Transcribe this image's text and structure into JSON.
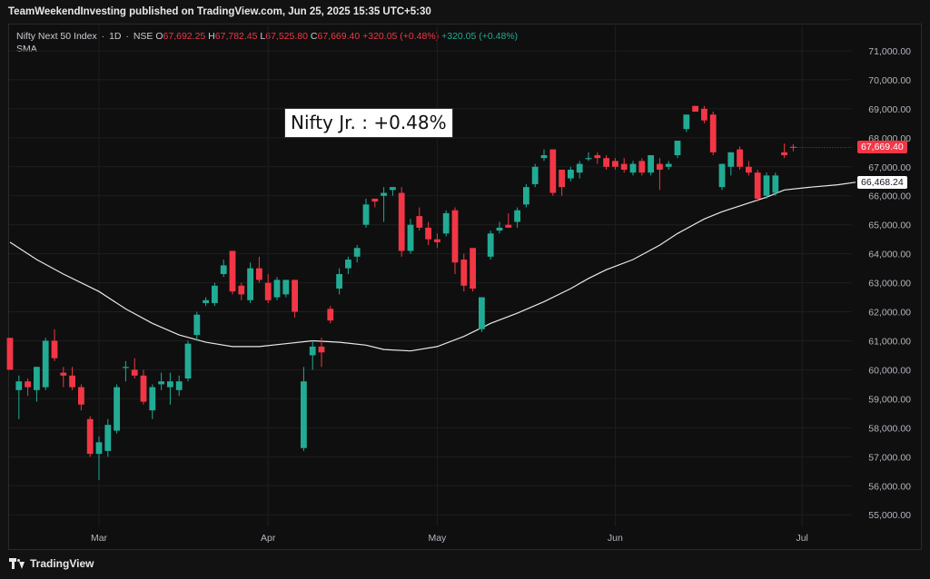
{
  "header": {
    "publisher_line": "TeamWeekendInvesting published on TradingView.com, Jun 25, 2025 15:35 UTC+5:30"
  },
  "legend": {
    "symbol": "Nifty Next 50 Index",
    "interval": "1D",
    "exchange": "NSE",
    "open_label": "O",
    "open": "67,692.25",
    "high_label": "H",
    "high": "67,782.45",
    "low_label": "L",
    "low": "67,525.80",
    "close_label": "C",
    "close": "67,669.40",
    "change": "+320.05 (+0.48%)",
    "change2": "+320.05 (+0.48%)",
    "indicator": "SMA"
  },
  "annotation": "Nifty Jr. : +0.48%",
  "price_tags": {
    "last": "67,669.40",
    "sma": "66,468.24"
  },
  "footer": {
    "brand": "TradingView"
  },
  "colors": {
    "up": "#22ab94",
    "down": "#f23645",
    "sma": "#e8e8e8",
    "grid": "#1e1e1e"
  },
  "chart_data": {
    "type": "candlestick",
    "title": "",
    "y_axis": {
      "ticks": [
        "55,000.00",
        "56,000.00",
        "57,000.00",
        "58,000.00",
        "59,000.00",
        "60,000.00",
        "61,000.00",
        "62,000.00",
        "63,000.00",
        "64,000.00",
        "65,000.00",
        "66,000.00",
        "67,000.00",
        "68,000.00",
        "69,000.00",
        "70,000.00",
        "71,000.00"
      ],
      "min": 54600,
      "max": 71500
    },
    "x_axis": {
      "ticks": [
        {
          "label": "Mar",
          "index": 10
        },
        {
          "label": "Apr",
          "index": 29
        },
        {
          "label": "May",
          "index": 48
        },
        {
          "label": "Jun",
          "index": 68
        },
        {
          "label": "Jul",
          "index": 89
        }
      ],
      "n_slots": 90
    },
    "candles": [
      {
        "i": 0,
        "o": 61100,
        "h": 61100,
        "l": 60000,
        "c": 60000
      },
      {
        "i": 1,
        "o": 59300,
        "h": 59800,
        "l": 58300,
        "c": 59600
      },
      {
        "i": 2,
        "o": 59600,
        "h": 59700,
        "l": 59100,
        "c": 59400
      },
      {
        "i": 3,
        "o": 59300,
        "h": 60100,
        "l": 58900,
        "c": 60100
      },
      {
        "i": 4,
        "o": 59400,
        "h": 61100,
        "l": 59300,
        "c": 61000
      },
      {
        "i": 5,
        "o": 61000,
        "h": 61400,
        "l": 60300,
        "c": 60400
      },
      {
        "i": 6,
        "o": 59900,
        "h": 60100,
        "l": 59400,
        "c": 59800
      },
      {
        "i": 7,
        "o": 59800,
        "h": 60100,
        "l": 59300,
        "c": 59400
      },
      {
        "i": 8,
        "o": 59400,
        "h": 59500,
        "l": 58600,
        "c": 58800
      },
      {
        "i": 9,
        "o": 58300,
        "h": 58400,
        "l": 57000,
        "c": 57100
      },
      {
        "i": 10,
        "o": 57100,
        "h": 57700,
        "l": 56200,
        "c": 57500
      },
      {
        "i": 11,
        "o": 57200,
        "h": 58300,
        "l": 57000,
        "c": 58100
      },
      {
        "i": 12,
        "o": 57900,
        "h": 59500,
        "l": 57800,
        "c": 59400
      },
      {
        "i": 13,
        "o": 60100,
        "h": 60300,
        "l": 59600,
        "c": 60100
      },
      {
        "i": 14,
        "o": 60000,
        "h": 60400,
        "l": 59700,
        "c": 59800
      },
      {
        "i": 15,
        "o": 59800,
        "h": 60000,
        "l": 58800,
        "c": 58900
      },
      {
        "i": 16,
        "o": 58600,
        "h": 59500,
        "l": 58300,
        "c": 59400
      },
      {
        "i": 17,
        "o": 59500,
        "h": 59900,
        "l": 59300,
        "c": 59600
      },
      {
        "i": 18,
        "o": 59400,
        "h": 59900,
        "l": 58800,
        "c": 59600
      },
      {
        "i": 19,
        "o": 59300,
        "h": 59800,
        "l": 59100,
        "c": 59600
      },
      {
        "i": 20,
        "o": 59700,
        "h": 61000,
        "l": 59600,
        "c": 60900
      },
      {
        "i": 21,
        "o": 61200,
        "h": 62000,
        "l": 61000,
        "c": 61900
      },
      {
        "i": 22,
        "o": 62300,
        "h": 62500,
        "l": 62200,
        "c": 62400
      },
      {
        "i": 23,
        "o": 62300,
        "h": 63000,
        "l": 62200,
        "c": 62900
      },
      {
        "i": 24,
        "o": 63300,
        "h": 63800,
        "l": 63200,
        "c": 63600
      },
      {
        "i": 25,
        "o": 64100,
        "h": 64100,
        "l": 62600,
        "c": 62700
      },
      {
        "i": 26,
        "o": 62900,
        "h": 63000,
        "l": 62400,
        "c": 62600
      },
      {
        "i": 27,
        "o": 62400,
        "h": 63700,
        "l": 62300,
        "c": 63500
      },
      {
        "i": 28,
        "o": 63500,
        "h": 63900,
        "l": 63000,
        "c": 63100
      },
      {
        "i": 29,
        "o": 63000,
        "h": 63300,
        "l": 62300,
        "c": 62400
      },
      {
        "i": 30,
        "o": 62500,
        "h": 63200,
        "l": 62400,
        "c": 63100
      },
      {
        "i": 31,
        "o": 62600,
        "h": 63100,
        "l": 62500,
        "c": 63100
      },
      {
        "i": 32,
        "o": 63100,
        "h": 63100,
        "l": 61800,
        "c": 62000
      },
      {
        "i": 33,
        "o": 57300,
        "h": 60100,
        "l": 57200,
        "c": 59600
      },
      {
        "i": 34,
        "o": 60500,
        "h": 61000,
        "l": 60000,
        "c": 60800
      },
      {
        "i": 35,
        "o": 60800,
        "h": 61100,
        "l": 60100,
        "c": 60600
      },
      {
        "i": 36,
        "o": 62100,
        "h": 62200,
        "l": 61600,
        "c": 61700
      },
      {
        "i": 37,
        "o": 62800,
        "h": 63500,
        "l": 62600,
        "c": 63300
      },
      {
        "i": 38,
        "o": 63500,
        "h": 63900,
        "l": 63300,
        "c": 63800
      },
      {
        "i": 39,
        "o": 63900,
        "h": 64300,
        "l": 63700,
        "c": 64200
      },
      {
        "i": 40,
        "o": 65000,
        "h": 65900,
        "l": 64900,
        "c": 65700
      },
      {
        "i": 41,
        "o": 65900,
        "h": 65900,
        "l": 65600,
        "c": 65800
      },
      {
        "i": 42,
        "o": 66000,
        "h": 66300,
        "l": 65100,
        "c": 66100
      },
      {
        "i": 43,
        "o": 66200,
        "h": 66300,
        "l": 66000,
        "c": 66300
      },
      {
        "i": 44,
        "o": 66100,
        "h": 66300,
        "l": 63900,
        "c": 64100
      },
      {
        "i": 45,
        "o": 64100,
        "h": 65200,
        "l": 64000,
        "c": 65000
      },
      {
        "i": 46,
        "o": 65300,
        "h": 65600,
        "l": 64800,
        "c": 64900
      },
      {
        "i": 47,
        "o": 64900,
        "h": 65100,
        "l": 64300,
        "c": 64500
      },
      {
        "i": 48,
        "o": 64500,
        "h": 64700,
        "l": 64200,
        "c": 64400
      },
      {
        "i": 49,
        "o": 64700,
        "h": 65500,
        "l": 64600,
        "c": 65400
      },
      {
        "i": 50,
        "o": 65500,
        "h": 65600,
        "l": 63300,
        "c": 63700
      },
      {
        "i": 51,
        "o": 63800,
        "h": 64000,
        "l": 62700,
        "c": 62900
      },
      {
        "i": 52,
        "o": 64200,
        "h": 64200,
        "l": 62700,
        "c": 62800
      },
      {
        "i": 53,
        "o": 61400,
        "h": 62500,
        "l": 61300,
        "c": 62500
      },
      {
        "i": 54,
        "o": 63900,
        "h": 64800,
        "l": 63800,
        "c": 64700
      },
      {
        "i": 55,
        "o": 64800,
        "h": 65100,
        "l": 64700,
        "c": 64900
      },
      {
        "i": 56,
        "o": 65000,
        "h": 65400,
        "l": 64900,
        "c": 64900
      },
      {
        "i": 57,
        "o": 65100,
        "h": 65600,
        "l": 64900,
        "c": 65500
      },
      {
        "i": 58,
        "o": 65700,
        "h": 66400,
        "l": 65600,
        "c": 66300
      },
      {
        "i": 59,
        "o": 66400,
        "h": 67100,
        "l": 66300,
        "c": 67000
      },
      {
        "i": 60,
        "o": 67300,
        "h": 67600,
        "l": 67200,
        "c": 67400
      },
      {
        "i": 61,
        "o": 67600,
        "h": 67600,
        "l": 66000,
        "c": 66100
      },
      {
        "i": 62,
        "o": 66900,
        "h": 66900,
        "l": 66000,
        "c": 66300
      },
      {
        "i": 63,
        "o": 66600,
        "h": 67000,
        "l": 66500,
        "c": 66900
      },
      {
        "i": 64,
        "o": 66800,
        "h": 67200,
        "l": 66600,
        "c": 67100
      },
      {
        "i": 65,
        "o": 67300,
        "h": 67500,
        "l": 67200,
        "c": 67300
      },
      {
        "i": 66,
        "o": 67400,
        "h": 67500,
        "l": 67100,
        "c": 67300
      },
      {
        "i": 67,
        "o": 67300,
        "h": 67400,
        "l": 66900,
        "c": 67000
      },
      {
        "i": 68,
        "o": 67200,
        "h": 67300,
        "l": 66900,
        "c": 67000
      },
      {
        "i": 69,
        "o": 67100,
        "h": 67300,
        "l": 66800,
        "c": 66900
      },
      {
        "i": 70,
        "o": 66800,
        "h": 67200,
        "l": 66700,
        "c": 67100
      },
      {
        "i": 71,
        "o": 67200,
        "h": 67300,
        "l": 66700,
        "c": 66800
      },
      {
        "i": 72,
        "o": 66800,
        "h": 67400,
        "l": 66700,
        "c": 67400
      },
      {
        "i": 73,
        "o": 67100,
        "h": 67300,
        "l": 66200,
        "c": 66900
      },
      {
        "i": 74,
        "o": 67000,
        "h": 67200,
        "l": 66900,
        "c": 67100
      },
      {
        "i": 75,
        "o": 67400,
        "h": 67900,
        "l": 67300,
        "c": 67900
      },
      {
        "i": 76,
        "o": 68300,
        "h": 68800,
        "l": 68200,
        "c": 68800
      },
      {
        "i": 77,
        "o": 69100,
        "h": 69100,
        "l": 68900,
        "c": 68900
      },
      {
        "i": 78,
        "o": 69000,
        "h": 69100,
        "l": 68500,
        "c": 68600
      },
      {
        "i": 79,
        "o": 68800,
        "h": 68900,
        "l": 67400,
        "c": 67500
      },
      {
        "i": 80,
        "o": 66300,
        "h": 67100,
        "l": 66200,
        "c": 67100
      },
      {
        "i": 81,
        "o": 67000,
        "h": 67500,
        "l": 66700,
        "c": 67500
      },
      {
        "i": 82,
        "o": 67600,
        "h": 67700,
        "l": 66900,
        "c": 67000
      },
      {
        "i": 83,
        "o": 67000,
        "h": 67200,
        "l": 66700,
        "c": 66800
      },
      {
        "i": 84,
        "o": 66800,
        "h": 66900,
        "l": 65800,
        "c": 65900
      },
      {
        "i": 85,
        "o": 66000,
        "h": 66800,
        "l": 65900,
        "c": 66700
      },
      {
        "i": 86,
        "o": 66100,
        "h": 66800,
        "l": 66000,
        "c": 66700
      },
      {
        "i": 87,
        "o": 67500,
        "h": 67800,
        "l": 67300,
        "c": 67400
      },
      {
        "i": 88,
        "o": 67690,
        "h": 67780,
        "l": 67530,
        "c": 67670
      }
    ],
    "series": [
      {
        "name": "SMA",
        "values": [
          [
            0,
            64400
          ],
          [
            3,
            63800
          ],
          [
            6,
            63300
          ],
          [
            10,
            62700
          ],
          [
            13,
            62100
          ],
          [
            16,
            61600
          ],
          [
            19,
            61200
          ],
          [
            22,
            60950
          ],
          [
            25,
            60800
          ],
          [
            28,
            60800
          ],
          [
            31,
            60900
          ],
          [
            34,
            61000
          ],
          [
            37,
            60950
          ],
          [
            40,
            60850
          ],
          [
            42,
            60700
          ],
          [
            45,
            60650
          ],
          [
            48,
            60800
          ],
          [
            51,
            61150
          ],
          [
            54,
            61600
          ],
          [
            57,
            61950
          ],
          [
            60,
            62350
          ],
          [
            63,
            62800
          ],
          [
            65,
            63150
          ],
          [
            67,
            63450
          ],
          [
            70,
            63800
          ],
          [
            73,
            64300
          ],
          [
            75,
            64700
          ],
          [
            78,
            65200
          ],
          [
            80,
            65450
          ],
          [
            83,
            65750
          ],
          [
            85,
            65950
          ],
          [
            87,
            66200
          ],
          [
            90,
            66300
          ],
          [
            93,
            66380
          ],
          [
            95,
            66468
          ]
        ]
      }
    ]
  }
}
